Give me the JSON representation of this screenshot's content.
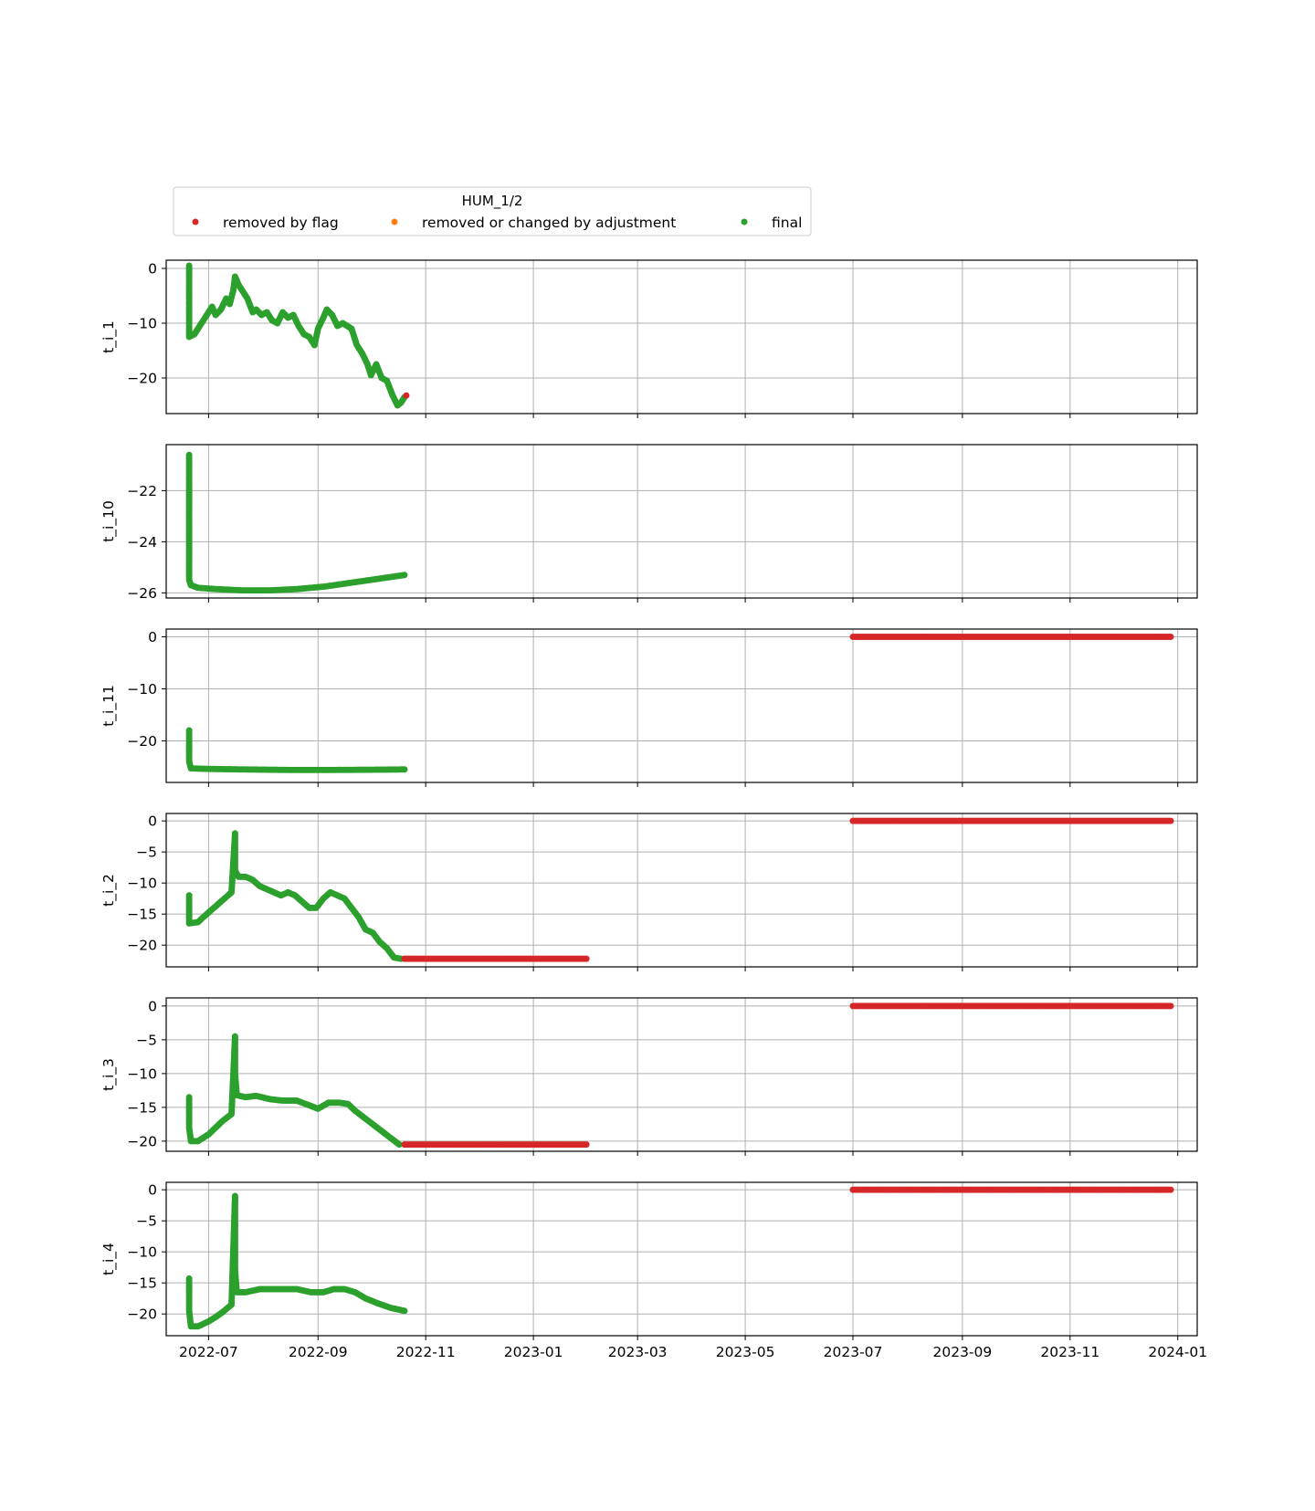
{
  "legend": {
    "title": "HUM_1/2",
    "entries": [
      {
        "label": "removed by flag",
        "color": "#d62728"
      },
      {
        "label": "removed or changed by adjustment",
        "color": "#ff7f0e"
      },
      {
        "label": "final",
        "color": "#2ca02c"
      }
    ]
  },
  "chart_data": {
    "type": "scatter",
    "x_type": "date",
    "xlim": [
      "2022-06-07",
      "2024-01-12"
    ],
    "x_ticks": [
      "2022-07-01",
      "2022-09-01",
      "2022-11-01",
      "2023-01-01",
      "2023-03-01",
      "2023-05-01",
      "2023-07-01",
      "2023-09-01",
      "2023-11-01",
      "2024-01-01"
    ],
    "x_tick_labels": [
      "2022-07",
      "2022-09",
      "2022-11",
      "2023-01",
      "2023-03",
      "2023-05",
      "2023-07",
      "2023-09",
      "2023-11",
      "2024-01"
    ],
    "grid": true,
    "legend_position": "top",
    "panels": [
      {
        "ylabel": "t_i_1",
        "ylim": [
          -26.5,
          1.5
        ],
        "yticks": [
          0,
          -10,
          -20
        ],
        "series": [
          {
            "name": "final",
            "color": "#2ca02c",
            "points": [
              [
                "2022-06-20",
                0.5
              ],
              [
                "2022-06-20",
                -3
              ],
              [
                "2022-06-20",
                -7
              ],
              [
                "2022-06-20",
                -12.5
              ],
              [
                "2022-06-23",
                -12
              ],
              [
                "2022-06-25",
                -11
              ],
              [
                "2022-06-28",
                -9.5
              ],
              [
                "2022-07-01",
                -8
              ],
              [
                "2022-07-03",
                -7
              ],
              [
                "2022-07-05",
                -8.5
              ],
              [
                "2022-07-08",
                -7.5
              ],
              [
                "2022-07-11",
                -5.5
              ],
              [
                "2022-07-13",
                -6.5
              ],
              [
                "2022-07-15",
                -4
              ],
              [
                "2022-07-16",
                -1.5
              ],
              [
                "2022-07-18",
                -3
              ],
              [
                "2022-07-20",
                -4
              ],
              [
                "2022-07-23",
                -5.5
              ],
              [
                "2022-07-26",
                -8
              ],
              [
                "2022-07-28",
                -7.5
              ],
              [
                "2022-07-31",
                -8.5
              ],
              [
                "2022-08-03",
                -8
              ],
              [
                "2022-08-06",
                -9.5
              ],
              [
                "2022-08-09",
                -10
              ],
              [
                "2022-08-12",
                -8
              ],
              [
                "2022-08-15",
                -9
              ],
              [
                "2022-08-18",
                -8.5
              ],
              [
                "2022-08-21",
                -10.5
              ],
              [
                "2022-08-24",
                -12
              ],
              [
                "2022-08-27",
                -12.5
              ],
              [
                "2022-08-30",
                -14
              ],
              [
                "2022-09-01",
                -11
              ],
              [
                "2022-09-04",
                -9
              ],
              [
                "2022-09-06",
                -7.5
              ],
              [
                "2022-09-09",
                -8.5
              ],
              [
                "2022-09-12",
                -10.5
              ],
              [
                "2022-09-15",
                -10
              ],
              [
                "2022-09-20",
                -11
              ],
              [
                "2022-09-23",
                -14
              ],
              [
                "2022-09-26",
                -15.5
              ],
              [
                "2022-09-29",
                -17.5
              ],
              [
                "2022-10-01",
                -19.5
              ],
              [
                "2022-10-04",
                -17.5
              ],
              [
                "2022-10-07",
                -20
              ],
              [
                "2022-10-10",
                -20.5
              ],
              [
                "2022-10-13",
                -23
              ],
              [
                "2022-10-16",
                -25
              ],
              [
                "2022-10-18",
                -24.5
              ],
              [
                "2022-10-20",
                -23.5
              ]
            ]
          },
          {
            "name": "removed by flag",
            "color": "#d62728",
            "points": [
              [
                "2022-10-21",
                -23.2
              ]
            ]
          }
        ]
      },
      {
        "ylabel": "t_i_10",
        "ylim": [
          -26.2,
          -20.2
        ],
        "yticks": [
          -22,
          -24,
          -26
        ],
        "series": [
          {
            "name": "final",
            "color": "#2ca02c",
            "points": [
              [
                "2022-06-20",
                -20.6
              ],
              [
                "2022-06-20",
                -21.3
              ],
              [
                "2022-06-20",
                -21.9
              ],
              [
                "2022-06-20",
                -22.4
              ],
              [
                "2022-06-20",
                -22.8
              ],
              [
                "2022-06-20",
                -23.2
              ],
              [
                "2022-06-20",
                -23.6
              ],
              [
                "2022-06-20",
                -24.0
              ],
              [
                "2022-06-20",
                -24.4
              ],
              [
                "2022-06-20",
                -24.8
              ],
              [
                "2022-06-20",
                -25.2
              ],
              [
                "2022-06-20",
                -25.5
              ],
              [
                "2022-06-21",
                -25.7
              ],
              [
                "2022-06-25",
                -25.8
              ],
              [
                "2022-07-05",
                -25.85
              ],
              [
                "2022-07-20",
                -25.9
              ],
              [
                "2022-08-05",
                -25.9
              ],
              [
                "2022-08-20",
                -25.85
              ],
              [
                "2022-09-05",
                -25.75
              ],
              [
                "2022-09-20",
                -25.6
              ],
              [
                "2022-10-05",
                -25.45
              ],
              [
                "2022-10-20",
                -25.3
              ]
            ]
          }
        ]
      },
      {
        "ylabel": "t_i_11",
        "ylim": [
          -28,
          1.5
        ],
        "yticks": [
          0,
          -10,
          -20
        ],
        "series": [
          {
            "name": "final",
            "color": "#2ca02c",
            "points": [
              [
                "2022-06-20",
                -18
              ],
              [
                "2022-06-20",
                -19.5
              ],
              [
                "2022-06-20",
                -21
              ],
              [
                "2022-06-20",
                -22.5
              ],
              [
                "2022-06-20",
                -24
              ],
              [
                "2022-06-21",
                -25.3
              ],
              [
                "2022-07-01",
                -25.4
              ],
              [
                "2022-07-20",
                -25.5
              ],
              [
                "2022-08-15",
                -25.6
              ],
              [
                "2022-09-10",
                -25.6
              ],
              [
                "2022-10-05",
                -25.55
              ],
              [
                "2022-10-20",
                -25.5
              ]
            ]
          },
          {
            "name": "removed by flag",
            "color": "#d62728",
            "points": [
              [
                "2023-07-01",
                0
              ],
              [
                "2023-12-28",
                0
              ]
            ]
          }
        ]
      },
      {
        "ylabel": "t_i_2",
        "ylim": [
          -23.5,
          1.2
        ],
        "yticks": [
          0,
          -5,
          -10,
          -15,
          -20
        ],
        "series": [
          {
            "name": "final",
            "color": "#2ca02c",
            "points": [
              [
                "2022-06-20",
                -12
              ],
              [
                "2022-06-20",
                -14.5
              ],
              [
                "2022-06-20",
                -16.5
              ],
              [
                "2022-06-25",
                -16.3
              ],
              [
                "2022-06-28",
                -15.5
              ],
              [
                "2022-07-02",
                -14.5
              ],
              [
                "2022-07-06",
                -13.5
              ],
              [
                "2022-07-10",
                -12.5
              ],
              [
                "2022-07-14",
                -11.5
              ],
              [
                "2022-07-16",
                -2
              ],
              [
                "2022-07-16",
                -5
              ],
              [
                "2022-07-16",
                -8
              ],
              [
                "2022-07-18",
                -9
              ],
              [
                "2022-07-22",
                -9
              ],
              [
                "2022-07-26",
                -9.5
              ],
              [
                "2022-07-30",
                -10.5
              ],
              [
                "2022-08-03",
                -11
              ],
              [
                "2022-08-07",
                -11.5
              ],
              [
                "2022-08-11",
                -12
              ],
              [
                "2022-08-15",
                -11.5
              ],
              [
                "2022-08-19",
                -12
              ],
              [
                "2022-08-23",
                -13
              ],
              [
                "2022-08-27",
                -14
              ],
              [
                "2022-08-31",
                -14
              ],
              [
                "2022-09-04",
                -12.5
              ],
              [
                "2022-09-08",
                -11.5
              ],
              [
                "2022-09-12",
                -12
              ],
              [
                "2022-09-16",
                -12.5
              ],
              [
                "2022-09-20",
                -14
              ],
              [
                "2022-09-24",
                -15.5
              ],
              [
                "2022-09-28",
                -17.5
              ],
              [
                "2022-10-02",
                -18
              ],
              [
                "2022-10-06",
                -19.5
              ],
              [
                "2022-10-10",
                -20.5
              ],
              [
                "2022-10-14",
                -22
              ],
              [
                "2022-10-18",
                -22.2
              ]
            ]
          },
          {
            "name": "removed by flag",
            "color": "#d62728",
            "points": [
              [
                "2022-10-20",
                -22.2
              ],
              [
                "2023-01-31",
                -22.2
              ],
              [
                "2023-07-01",
                0
              ],
              [
                "2023-12-28",
                0
              ]
            ]
          }
        ]
      },
      {
        "ylabel": "t_i_3",
        "ylim": [
          -21.5,
          1.2
        ],
        "yticks": [
          0,
          -5,
          -10,
          -15,
          -20
        ],
        "series": [
          {
            "name": "final",
            "color": "#2ca02c",
            "points": [
              [
                "2022-06-20",
                -13.5
              ],
              [
                "2022-06-20",
                -16
              ],
              [
                "2022-06-20",
                -18
              ],
              [
                "2022-06-21",
                -20
              ],
              [
                "2022-06-25",
                -20
              ],
              [
                "2022-07-01",
                -19
              ],
              [
                "2022-07-05",
                -18
              ],
              [
                "2022-07-09",
                -17
              ],
              [
                "2022-07-14",
                -16
              ],
              [
                "2022-07-16",
                -4.5
              ],
              [
                "2022-07-16",
                -7
              ],
              [
                "2022-07-16",
                -10
              ],
              [
                "2022-07-17",
                -13.2
              ],
              [
                "2022-07-22",
                -13.5
              ],
              [
                "2022-07-28",
                -13.3
              ],
              [
                "2022-08-05",
                -13.8
              ],
              [
                "2022-08-12",
                -14
              ],
              [
                "2022-08-20",
                -14
              ],
              [
                "2022-08-28",
                -14.8
              ],
              [
                "2022-09-01",
                -15.2
              ],
              [
                "2022-09-07",
                -14.3
              ],
              [
                "2022-09-13",
                -14.3
              ],
              [
                "2022-09-18",
                -14.5
              ],
              [
                "2022-09-22",
                -15.5
              ],
              [
                "2022-09-27",
                -16.5
              ],
              [
                "2022-10-02",
                -17.5
              ],
              [
                "2022-10-07",
                -18.5
              ],
              [
                "2022-10-12",
                -19.5
              ],
              [
                "2022-10-17",
                -20.5
              ]
            ]
          },
          {
            "name": "removed by flag",
            "color": "#d62728",
            "points": [
              [
                "2022-10-20",
                -20.5
              ],
              [
                "2023-01-31",
                -20.5
              ],
              [
                "2023-07-01",
                0
              ],
              [
                "2023-12-28",
                0
              ]
            ]
          }
        ]
      },
      {
        "ylabel": "t_i_4",
        "ylim": [
          -23.5,
          1.2
        ],
        "yticks": [
          0,
          -5,
          -10,
          -15,
          -20
        ],
        "series": [
          {
            "name": "final",
            "color": "#2ca02c",
            "points": [
              [
                "2022-06-20",
                -14.3
              ],
              [
                "2022-06-20",
                -17
              ],
              [
                "2022-06-20",
                -19.5
              ],
              [
                "2022-06-21",
                -22
              ],
              [
                "2022-06-25",
                -22
              ],
              [
                "2022-07-01",
                -21.2
              ],
              [
                "2022-07-05",
                -20.5
              ],
              [
                "2022-07-09",
                -19.7
              ],
              [
                "2022-07-14",
                -18.5
              ],
              [
                "2022-07-16",
                -1
              ],
              [
                "2022-07-16",
                -4
              ],
              [
                "2022-07-16",
                -7
              ],
              [
                "2022-07-16",
                -10
              ],
              [
                "2022-07-16",
                -13
              ],
              [
                "2022-07-17",
                -16.5
              ],
              [
                "2022-07-22",
                -16.5
              ],
              [
                "2022-07-30",
                -16
              ],
              [
                "2022-08-10",
                -16
              ],
              [
                "2022-08-20",
                -16
              ],
              [
                "2022-08-28",
                -16.5
              ],
              [
                "2022-09-04",
                -16.5
              ],
              [
                "2022-09-10",
                -16
              ],
              [
                "2022-09-16",
                -16
              ],
              [
                "2022-09-22",
                -16.5
              ],
              [
                "2022-09-28",
                -17.5
              ],
              [
                "2022-10-05",
                -18.3
              ],
              [
                "2022-10-12",
                -19
              ],
              [
                "2022-10-20",
                -19.5
              ]
            ]
          },
          {
            "name": "removed by flag",
            "color": "#d62728",
            "points": [
              [
                "2023-07-01",
                0
              ],
              [
                "2023-12-28",
                0
              ]
            ]
          }
        ]
      }
    ]
  }
}
